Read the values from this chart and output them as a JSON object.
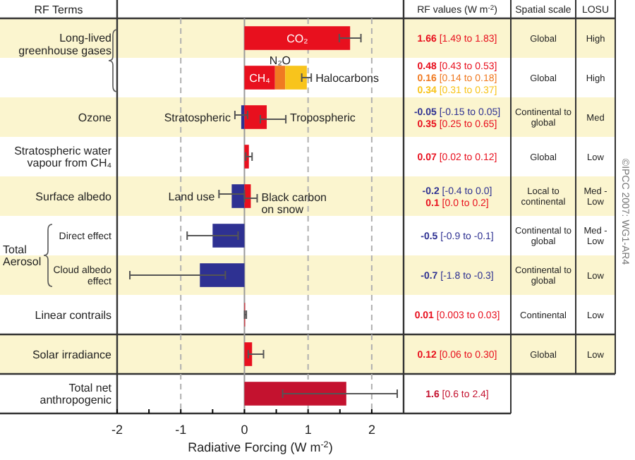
{
  "chart_data": {
    "type": "bar",
    "orientation": "horizontal",
    "stacked": true,
    "xlabel": "Radiative Forcing (W m$^{-2}$)",
    "categories": [
      "Long-lived greenhouse gases",
      null,
      "Ozone",
      "Stratospheric water vapour from CH₄",
      "Surface albedo",
      "Direct effect",
      "Cloud albedo effect",
      "Linear contrails",
      "Solar irradiance",
      "Total net anthropogenic"
    ],
    "xlim": [
      -2,
      2.5
    ],
    "xticks": [
      -2,
      {
        "value": -1.5,
        "label": null
      },
      -1,
      {
        "value": -0.5,
        "label": null
      },
      0,
      {
        "value": 0.5,
        "label": null
      },
      1,
      {
        "value": 1.5,
        "label": null
      },
      2
    ],
    "ref_lines": [
      {
        "axis": "x",
        "value": -1,
        "color": "#b0b0b0",
        "line_style": "dashed"
      },
      {
        "axis": "x",
        "value": 1,
        "color": "#b0b0b0",
        "line_style": "dashed"
      },
      {
        "axis": "x",
        "value": 2,
        "color": "#b0b0b0",
        "line_style": "dashed"
      }
    ],
    "bands": [
      {
        "axis": "y",
        "from": "Long-lived greenhouse gases",
        "to": "Long-lived greenhouse gases",
        "color": "#fbf5cf"
      },
      {
        "axis": "y",
        "from": "Ozone",
        "to": "Ozone",
        "color": "#fbf5cf"
      },
      {
        "axis": "y",
        "from": "Surface albedo",
        "to": "Surface albedo",
        "color": "#fbf5cf"
      },
      {
        "axis": "y",
        "from": "Cloud albedo effect",
        "to": "Cloud albedo effect",
        "color": "#fbf5cf"
      },
      {
        "axis": "y",
        "from": "Solar irradiance",
        "to": "Solar irradiance",
        "color": "#fbf5cf"
      }
    ],
    "series": [
      {
        "name": "CO₂",
        "color": "#e8101e",
        "values": [
          1.66,
          null,
          null,
          null,
          null,
          null,
          null,
          null,
          null,
          null
        ],
        "errors": [
          [
            1.49,
            1.83
          ],
          null,
          null,
          null,
          null,
          null,
          null,
          null,
          null,
          null
        ]
      },
      {
        "name": "CH₄",
        "color": "#e8101e",
        "values": [
          null,
          0.48,
          null,
          null,
          null,
          null,
          null,
          null,
          null,
          null
        ]
      },
      {
        "name": "N₂O",
        "color": "#f07a22",
        "values": [
          null,
          0.16,
          null,
          null,
          null,
          null,
          null,
          null,
          null,
          null
        ]
      },
      {
        "name": "Halocarbons",
        "color": "#f8c41c",
        "values": [
          null,
          0.34,
          null,
          null,
          null,
          null,
          null,
          null,
          null,
          null
        ],
        "errors": [
          null,
          [
            0.9,
            1.05
          ],
          null,
          null,
          null,
          null,
          null,
          null,
          null,
          null
        ]
      },
      {
        "name": "Stratospheric",
        "color": "#2e3192",
        "values": [
          null,
          null,
          -0.05,
          null,
          null,
          null,
          null,
          null,
          null,
          null
        ],
        "errors": [
          null,
          null,
          [
            -0.15,
            0.05
          ],
          null,
          null,
          null,
          null,
          null,
          null,
          null
        ]
      },
      {
        "name": "Tropospheric",
        "color": "#e8101e",
        "values": [
          null,
          null,
          0.35,
          null,
          null,
          null,
          null,
          null,
          null,
          null
        ],
        "errors": [
          null,
          null,
          [
            0.25,
            0.65
          ],
          null,
          null,
          null,
          null,
          null,
          null,
          null
        ]
      },
      {
        "color": "#e8101e",
        "values": [
          null,
          null,
          null,
          0.07,
          null,
          null,
          null,
          null,
          null,
          null
        ],
        "errors": [
          null,
          null,
          null,
          [
            0.02,
            0.12
          ],
          null,
          null,
          null,
          null,
          null,
          null
        ]
      },
      {
        "name": "Land use",
        "color": "#2e3192",
        "values": [
          null,
          null,
          null,
          null,
          -0.2,
          null,
          null,
          null,
          null,
          null
        ],
        "errors": [
          null,
          null,
          null,
          null,
          [
            -0.4,
            0.0
          ],
          null,
          null,
          null,
          null,
          null
        ]
      },
      {
        "name": "Black carbon on snow",
        "color": "#e8101e",
        "values": [
          null,
          null,
          null,
          null,
          0.1,
          null,
          null,
          null,
          null,
          null
        ],
        "errors": [
          null,
          null,
          null,
          null,
          [
            0.0,
            0.2
          ],
          null,
          null,
          null,
          null,
          null
        ]
      },
      {
        "color": "#2e3192",
        "values": [
          null,
          null,
          null,
          null,
          null,
          -0.5,
          -0.7,
          null,
          null,
          null
        ],
        "errors": [
          null,
          null,
          null,
          null,
          null,
          [
            -0.9,
            -0.1
          ],
          [
            -1.8,
            -0.3
          ],
          null,
          null,
          null
        ]
      },
      {
        "color": "#e8101e",
        "values": [
          null,
          null,
          null,
          null,
          null,
          null,
          null,
          0.01,
          0.12,
          null
        ],
        "errors": [
          null,
          null,
          null,
          null,
          null,
          null,
          null,
          [
            0.003,
            0.03
          ],
          [
            0.06,
            0.3
          ],
          null
        ]
      },
      {
        "color": "#c4122f",
        "values": [
          null,
          null,
          null,
          null,
          null,
          null,
          null,
          null,
          null,
          1.6
        ],
        "errors": [
          null,
          null,
          null,
          null,
          null,
          null,
          null,
          null,
          null,
          [
            0.6,
            2.4
          ]
        ]
      }
    ],
    "annotations": [
      "RF Terms",
      "RF values (W m$^{-2}$)",
      "Spatial scale",
      "LOSU",
      "Total Aerosol",
      "Global",
      "Global",
      "Continental to global",
      "Global",
      "Local to continental",
      "Continental to global",
      "Continental to global",
      "Continental",
      "Global",
      "High",
      "High",
      "Med",
      "Low",
      "Med - Low",
      "Med - Low",
      "Low",
      "Low",
      "Low",
      "©IPCC 2007: WG1-AR4",
      "1.66 [1.49 to 1.83]",
      "0.48 [0.43 to 0.53]",
      "0.16 [0.14 to 0.18]",
      "0.34 [0.31 to 0.37]",
      "-0.05 [-0.15 to 0.05]",
      "0.35 [0.25 to 0.65]",
      "0.07 [0.02 to 0.12]",
      "-0.2 [-0.4 to 0.0]",
      "0.1 [0.0 to 0.2]",
      "-0.5 [-0.9 to -0.1]",
      "-0.7 [-1.8 to -0.3]",
      "0.01 [0.003 to 0.03]",
      "0.12 [0.06 to 0.30]",
      "1.6 [0.6 to 2.4]"
    ]
  }
}
